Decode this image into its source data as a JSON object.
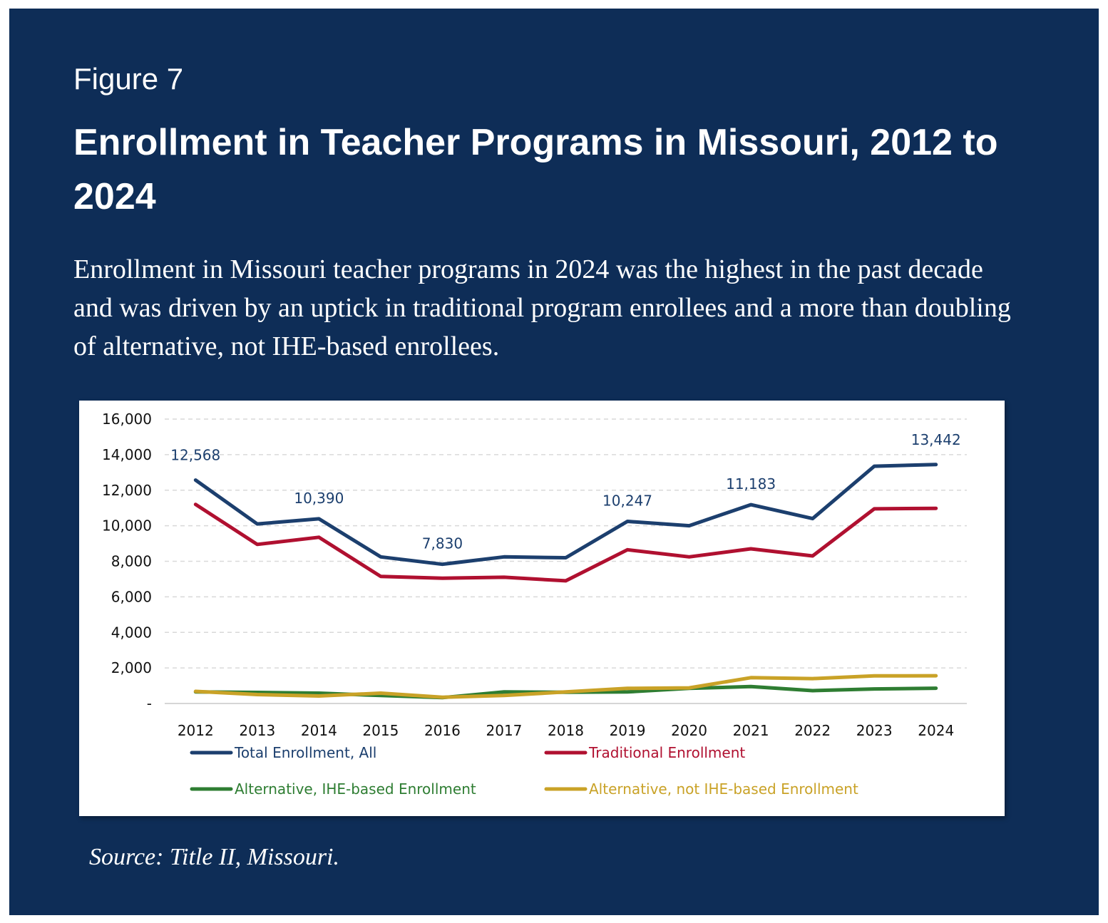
{
  "figure": {
    "label": "Figure 7",
    "title": "Enrollment in Teacher Programs in Missouri, 2012 to 2024",
    "subtitle": "Enrollment in Missouri teacher programs in 2024 was the highest in the past decade and was driven by an uptick in traditional program enrollees and a more than doubling of alternative, not IHE-based enrollees.",
    "source": "Source: Title II, Missouri."
  },
  "colors": {
    "background": "#0e2d57",
    "total": "#1c3f6e",
    "traditional": "#b01030",
    "alt_ihe": "#2e7d32",
    "alt_not_ihe": "#c9a227"
  },
  "chart_data": {
    "type": "line",
    "title": "",
    "xlabel": "",
    "ylabel": "",
    "x": [
      "2012",
      "2013",
      "2014",
      "2015",
      "2016",
      "2017",
      "2018",
      "2019",
      "2020",
      "2021",
      "2022",
      "2023",
      "2024"
    ],
    "ylim": [
      0,
      16000
    ],
    "yticks": [
      0,
      2000,
      4000,
      6000,
      8000,
      10000,
      12000,
      14000,
      16000
    ],
    "ytick_labels": [
      "-",
      "2,000",
      "4,000",
      "6,000",
      "8,000",
      "10,000",
      "12,000",
      "14,000",
      "16,000"
    ],
    "grid": "horizontal dashed",
    "legend_position": "bottom",
    "series": [
      {
        "name": "Total Enrollment, All",
        "color": "#1c3f6e",
        "values": [
          12568,
          10100,
          10390,
          8250,
          7830,
          8250,
          8200,
          10247,
          10000,
          11183,
          10400,
          13350,
          13442
        ],
        "data_labels": {
          "0": "12,568",
          "2": "10,390",
          "4": "7,830",
          "7": "10,247",
          "9": "11,183",
          "12": "13,442"
        }
      },
      {
        "name": "Traditional Enrollment",
        "color": "#b01030",
        "values": [
          11200,
          8950,
          9350,
          7150,
          7050,
          7100,
          6900,
          8650,
          8250,
          8700,
          8300,
          10950,
          10980
        ]
      },
      {
        "name": "Alternative, IHE-based Enrollment",
        "color": "#2e7d32",
        "values": [
          650,
          620,
          580,
          450,
          330,
          650,
          630,
          650,
          850,
          950,
          720,
          820,
          860
        ]
      },
      {
        "name": "Alternative, not IHE-based Enrollment",
        "color": "#c9a227",
        "values": [
          680,
          500,
          420,
          580,
          350,
          450,
          650,
          850,
          880,
          1450,
          1400,
          1550,
          1560
        ]
      }
    ]
  }
}
